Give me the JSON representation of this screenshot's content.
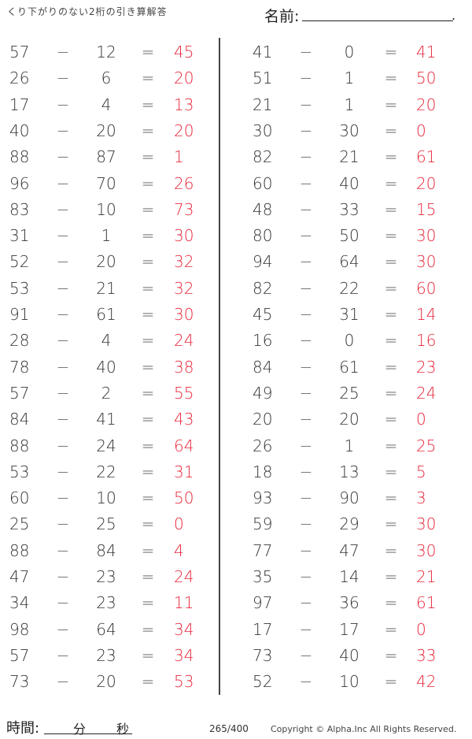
{
  "header": {
    "title": "くり下がりのない2桁の引き算解答",
    "name_label": "名前:",
    "name_dot": "."
  },
  "operator": "−",
  "equals": "=",
  "colors": {
    "answer": "#e8283c",
    "text": "#333333"
  },
  "left_column": [
    {
      "a": "57",
      "b": "12",
      "ans": "45"
    },
    {
      "a": "26",
      "b": "6",
      "ans": "20"
    },
    {
      "a": "17",
      "b": "4",
      "ans": "13"
    },
    {
      "a": "40",
      "b": "20",
      "ans": "20"
    },
    {
      "a": "88",
      "b": "87",
      "ans": "1"
    },
    {
      "a": "96",
      "b": "70",
      "ans": "26"
    },
    {
      "a": "83",
      "b": "10",
      "ans": "73"
    },
    {
      "a": "31",
      "b": "1",
      "ans": "30"
    },
    {
      "a": "52",
      "b": "20",
      "ans": "32"
    },
    {
      "a": "53",
      "b": "21",
      "ans": "32"
    },
    {
      "a": "91",
      "b": "61",
      "ans": "30"
    },
    {
      "a": "28",
      "b": "4",
      "ans": "24"
    },
    {
      "a": "78",
      "b": "40",
      "ans": "38"
    },
    {
      "a": "57",
      "b": "2",
      "ans": "55"
    },
    {
      "a": "84",
      "b": "41",
      "ans": "43"
    },
    {
      "a": "88",
      "b": "24",
      "ans": "64"
    },
    {
      "a": "53",
      "b": "22",
      "ans": "31"
    },
    {
      "a": "60",
      "b": "10",
      "ans": "50"
    },
    {
      "a": "25",
      "b": "25",
      "ans": "0"
    },
    {
      "a": "88",
      "b": "84",
      "ans": "4"
    },
    {
      "a": "47",
      "b": "23",
      "ans": "24"
    },
    {
      "a": "34",
      "b": "23",
      "ans": "11"
    },
    {
      "a": "98",
      "b": "64",
      "ans": "34"
    },
    {
      "a": "57",
      "b": "23",
      "ans": "34"
    },
    {
      "a": "73",
      "b": "20",
      "ans": "53"
    }
  ],
  "right_column": [
    {
      "a": "41",
      "b": "0",
      "ans": "41"
    },
    {
      "a": "51",
      "b": "1",
      "ans": "50"
    },
    {
      "a": "21",
      "b": "1",
      "ans": "20"
    },
    {
      "a": "30",
      "b": "30",
      "ans": "0"
    },
    {
      "a": "82",
      "b": "21",
      "ans": "61"
    },
    {
      "a": "60",
      "b": "40",
      "ans": "20"
    },
    {
      "a": "48",
      "b": "33",
      "ans": "15"
    },
    {
      "a": "80",
      "b": "50",
      "ans": "30"
    },
    {
      "a": "94",
      "b": "64",
      "ans": "30"
    },
    {
      "a": "82",
      "b": "22",
      "ans": "60"
    },
    {
      "a": "45",
      "b": "31",
      "ans": "14"
    },
    {
      "a": "16",
      "b": "0",
      "ans": "16"
    },
    {
      "a": "84",
      "b": "61",
      "ans": "23"
    },
    {
      "a": "49",
      "b": "25",
      "ans": "24"
    },
    {
      "a": "20",
      "b": "20",
      "ans": "0"
    },
    {
      "a": "26",
      "b": "1",
      "ans": "25"
    },
    {
      "a": "18",
      "b": "13",
      "ans": "5"
    },
    {
      "a": "93",
      "b": "90",
      "ans": "3"
    },
    {
      "a": "59",
      "b": "29",
      "ans": "30"
    },
    {
      "a": "77",
      "b": "47",
      "ans": "30"
    },
    {
      "a": "35",
      "b": "14",
      "ans": "21"
    },
    {
      "a": "97",
      "b": "36",
      "ans": "61"
    },
    {
      "a": "17",
      "b": "17",
      "ans": "0"
    },
    {
      "a": "73",
      "b": "40",
      "ans": "33"
    },
    {
      "a": "52",
      "b": "10",
      "ans": "42"
    }
  ],
  "footer": {
    "time_label": "時間:",
    "minutes": "分",
    "seconds": "秒",
    "page": "265/400",
    "copyright": "Copyright ©  Alpha.Inc All Rights Reserved."
  }
}
